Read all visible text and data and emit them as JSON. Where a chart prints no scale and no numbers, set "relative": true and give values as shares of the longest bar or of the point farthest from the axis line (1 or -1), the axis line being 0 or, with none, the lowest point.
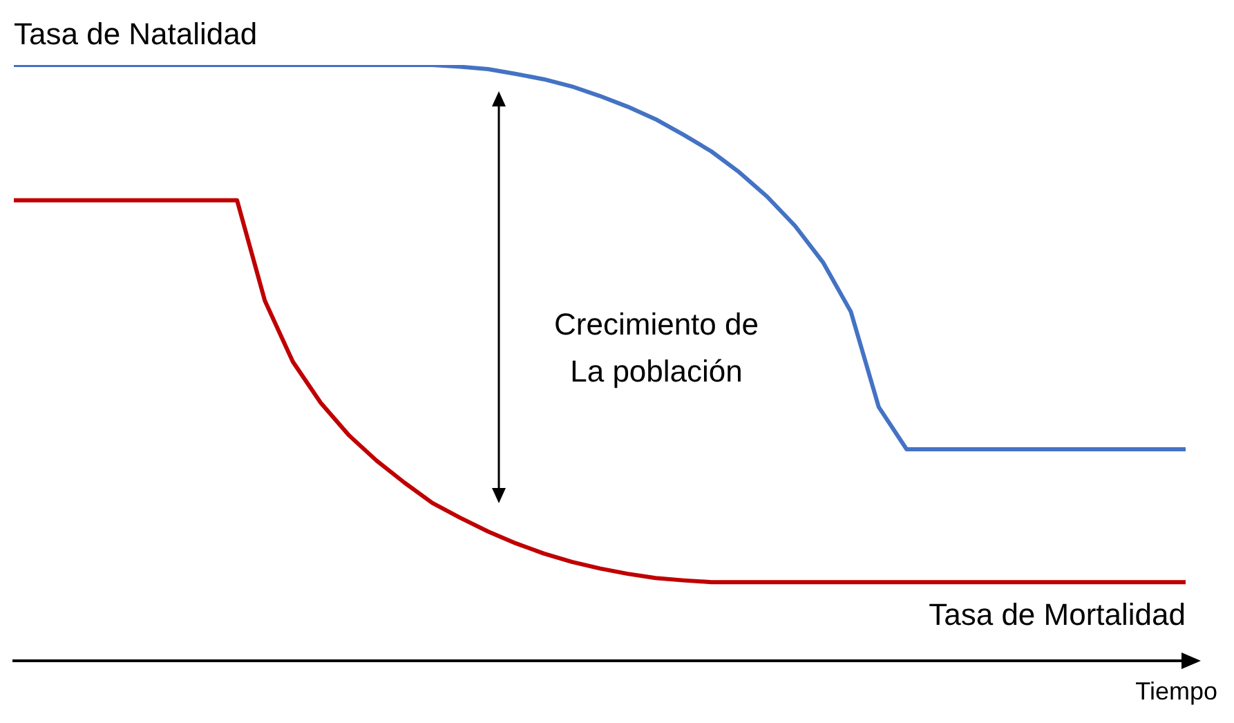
{
  "chart_data": {
    "type": "line",
    "relative": true,
    "xlabel": "Tiempo",
    "categories": [
      null,
      null,
      null,
      null,
      null,
      null,
      null,
      null,
      null,
      null,
      null,
      null,
      null,
      null,
      null,
      null,
      null,
      null,
      null,
      null,
      null,
      null,
      null,
      null,
      null,
      null,
      null,
      null,
      null,
      null,
      null,
      null,
      null,
      null,
      null,
      null,
      null,
      null,
      null,
      null,
      null,
      null,
      null
    ],
    "series": [
      {
        "name": "Tasa de Natalidad",
        "color": "#4472c4",
        "values": [
          1,
          1,
          1,
          1,
          1,
          1,
          1,
          1,
          1,
          1,
          1,
          1,
          1,
          1,
          1,
          1,
          0.997,
          0.993,
          0.985,
          0.976,
          0.964,
          0.948,
          0.93,
          0.909,
          0.883,
          0.855,
          0.82,
          0.779,
          0.73,
          0.669,
          0.586,
          0.426,
          0.355,
          0.355,
          0.355,
          0.355,
          0.355,
          0.355,
          0.355,
          0.355,
          0.355,
          0.355,
          0.355
        ]
      },
      {
        "name": "Tasa de Mortalidad",
        "color": "#c00000",
        "values": [
          0.773,
          0.773,
          0.773,
          0.773,
          0.773,
          0.773,
          0.773,
          0.773,
          0.773,
          0.604,
          0.502,
          0.433,
          0.379,
          0.336,
          0.299,
          0.265,
          0.24,
          0.217,
          0.197,
          0.18,
          0.166,
          0.155,
          0.146,
          0.139,
          0.135,
          0.132,
          0.132,
          0.132,
          0.132,
          0.132,
          0.132,
          0.132,
          0.132,
          0.132,
          0.132,
          0.132,
          0.132,
          0.132,
          0.132,
          0.132,
          0.132,
          0.132,
          0.132
        ]
      }
    ],
    "annotations": [
      "Crecimiento de La población"
    ],
    "legend": false,
    "grid": false,
    "marker": "none",
    "line_style": "solid"
  }
}
